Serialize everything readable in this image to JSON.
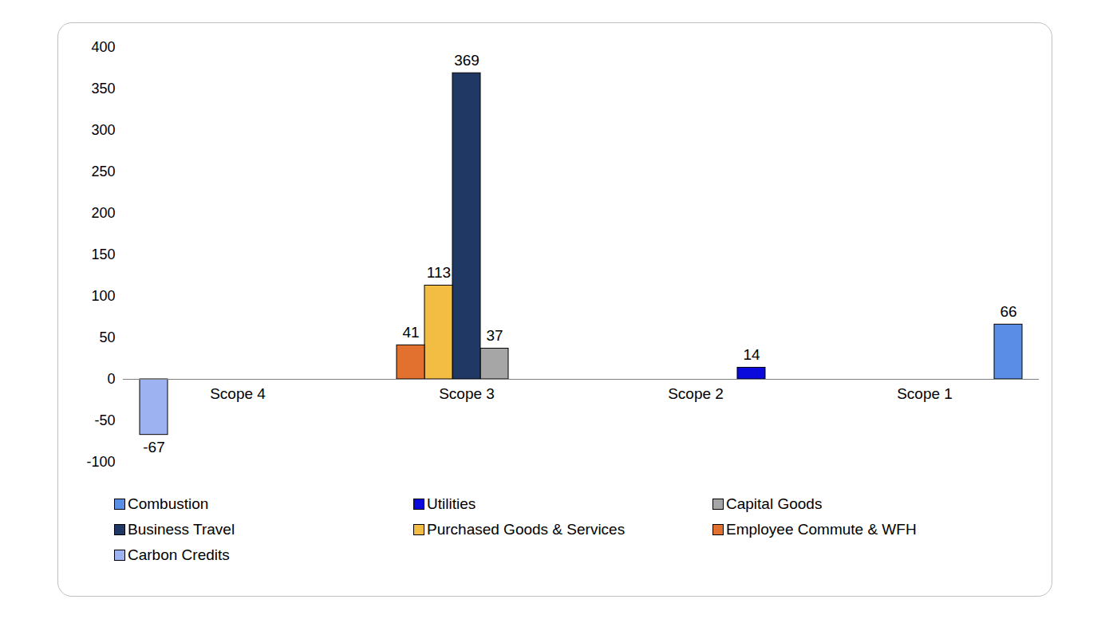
{
  "chart_data": {
    "type": "bar",
    "categories": [
      "Scope 4",
      "Scope 3",
      "Scope 2",
      "Scope 1"
    ],
    "series": [
      {
        "name": "Combustion",
        "color": "#5a8ee6",
        "values": [
          null,
          null,
          null,
          66
        ]
      },
      {
        "name": "Utilities",
        "color": "#0a0adc",
        "values": [
          null,
          null,
          14,
          null
        ]
      },
      {
        "name": "Capital Goods",
        "color": "#a6a6a6",
        "values": [
          null,
          37,
          null,
          null
        ]
      },
      {
        "name": "Business Travel",
        "color": "#1f3864",
        "values": [
          null,
          369,
          null,
          null
        ]
      },
      {
        "name": "Purchased Goods & Services",
        "color": "#f2bd42",
        "values": [
          null,
          113,
          null,
          null
        ]
      },
      {
        "name": "Employee Commute & WFH",
        "color": "#e2702e",
        "values": [
          null,
          41,
          null,
          null
        ]
      },
      {
        "name": "Carbon Credits",
        "color": "#9db2f0",
        "values": [
          -67,
          null,
          null,
          null
        ]
      }
    ],
    "ylim": [
      -100,
      400
    ],
    "yticks": [
      -100,
      -50,
      0,
      50,
      100,
      150,
      200,
      250,
      300,
      350,
      400
    ],
    "grid": false,
    "data_labels": true,
    "legend": "bottom"
  }
}
